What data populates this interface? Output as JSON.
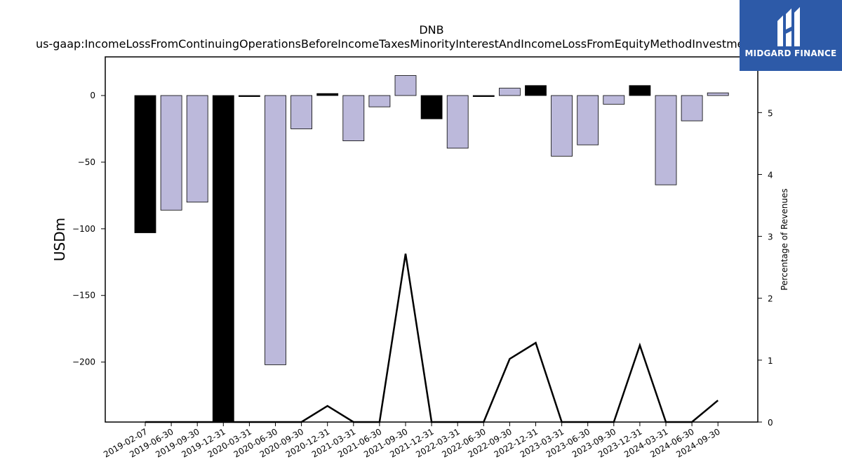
{
  "chart_data": {
    "type": "bar",
    "title": "DNB",
    "subtitle": "us-gaap:IncomeLossFromContinuingOperationsBeforeIncomeTaxesMinorityInterestAndIncomeLossFromEquityMethodInvestments",
    "ylabel": "USDm",
    "y2label": "Percentage of Revenues",
    "ylim": [
      -245,
      29
    ],
    "y2lim": [
      0,
      5.9
    ],
    "yticks": [
      0,
      -50,
      -100,
      -150,
      -200
    ],
    "y2ticks": [
      0,
      1,
      2,
      3,
      4,
      5
    ],
    "grid": false,
    "categories": [
      "2019-02-07",
      "2019-06-30",
      "2019-09-30",
      "2019-12-31",
      "2020-03-31",
      "2020-06-30",
      "2020-09-30",
      "2020-12-31",
      "2021-03-31",
      "2021-06-30",
      "2021-09-30",
      "2021-12-31",
      "2022-03-31",
      "2022-06-30",
      "2022-09-30",
      "2022-12-31",
      "2023-03-31",
      "2023-06-30",
      "2023-09-30",
      "2023-12-31",
      "2024-03-31",
      "2024-06-30",
      "2024-09-30"
    ],
    "series": [
      {
        "type": "bar",
        "values": [
          -103,
          -86,
          -80,
          -245,
          -0.5,
          -202,
          -25,
          1.5,
          -34,
          -8.5,
          15,
          -17.5,
          -39.5,
          -0.5,
          5.5,
          7.5,
          -45.5,
          -37,
          -6.5,
          7.5,
          -67,
          -19,
          2
        ],
        "colors": [
          "#000000",
          "#bcb9db",
          "#bcb9db",
          "#000000",
          "#000000",
          "#bcb9db",
          "#bcb9db",
          "#000000",
          "#bcb9db",
          "#bcb9db",
          "#bcb9db",
          "#000000",
          "#bcb9db",
          "#000000",
          "#bcb9db",
          "#000000",
          "#bcb9db",
          "#bcb9db",
          "#bcb9db",
          "#000000",
          "#bcb9db",
          "#bcb9db",
          "#bcb9db"
        ]
      },
      {
        "type": "line",
        "axis": "right",
        "color": "#000000",
        "values": [
          0,
          0,
          0,
          0,
          0,
          0,
          0,
          0.26,
          0,
          0,
          2.72,
          0,
          0,
          0,
          1.02,
          1.28,
          0,
          0,
          0,
          1.24,
          0,
          0,
          0.35
        ]
      }
    ]
  },
  "logo": {
    "text": "MIDGARD FINANCE",
    "color": "#2d5aa8",
    "icon": "midgard-logo-icon"
  }
}
